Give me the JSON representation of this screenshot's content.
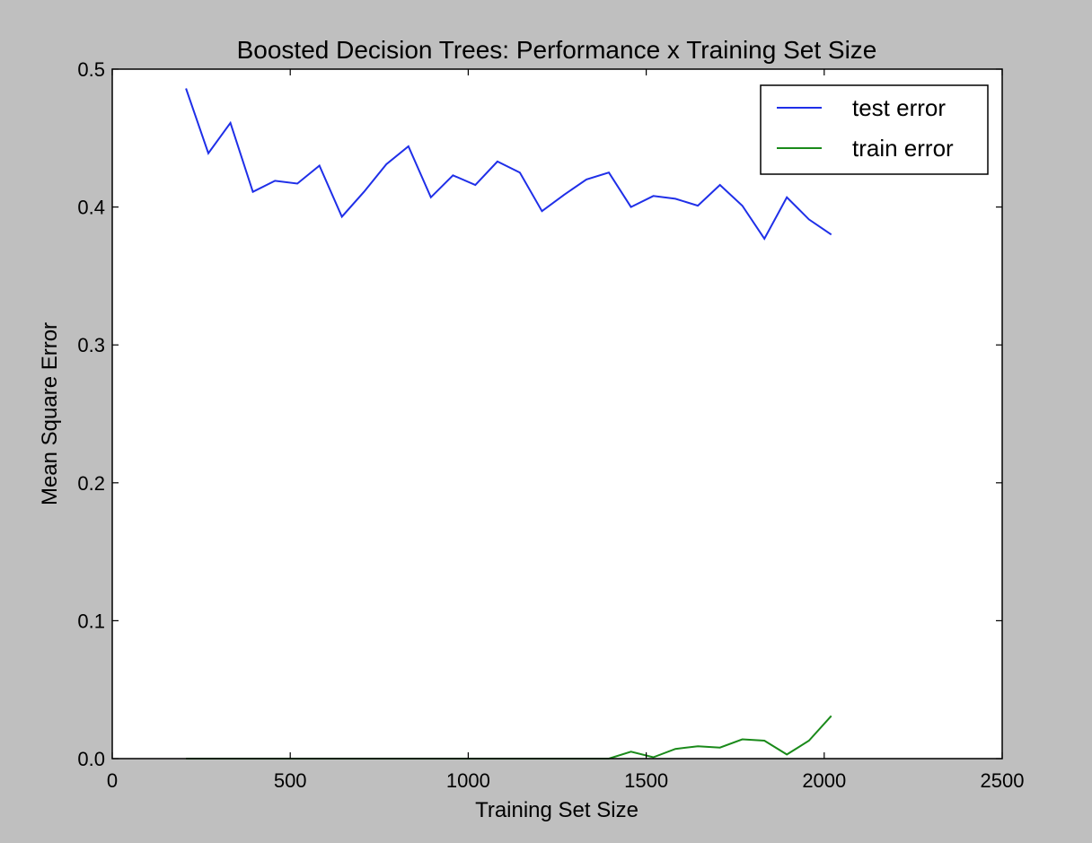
{
  "figure": {
    "background": "#bfbfbf",
    "axes_background": "#ffffff"
  },
  "chart_data": {
    "type": "line",
    "title": "Boosted Decision Trees: Performance x Training Set Size",
    "xlabel": "Training Set Size",
    "ylabel": "Mean Square Error",
    "xlim": [
      0,
      2500
    ],
    "ylim": [
      0.0,
      0.5
    ],
    "xticks": [
      0,
      500,
      1000,
      1500,
      2000,
      2500
    ],
    "xtick_labels": [
      "0",
      "500",
      "1000",
      "1500",
      "2000",
      "2500"
    ],
    "yticks": [
      0.0,
      0.1,
      0.2,
      0.3,
      0.4,
      0.5
    ],
    "ytick_labels": [
      "0.0",
      "0.1",
      "0.2",
      "0.3",
      "0.4",
      "0.5"
    ],
    "grid": false,
    "legend_position": "top-right",
    "series": [
      {
        "name": "test error",
        "color": "#1f2fe8",
        "x": [
          207,
          270,
          332,
          395,
          457,
          520,
          582,
          645,
          707,
          770,
          832,
          895,
          957,
          1020,
          1082,
          1145,
          1207,
          1270,
          1332,
          1395,
          1457,
          1520,
          1582,
          1645,
          1707,
          1770,
          1832,
          1895,
          1957,
          2020
        ],
        "y": [
          0.486,
          0.439,
          0.461,
          0.411,
          0.419,
          0.417,
          0.43,
          0.393,
          0.411,
          0.431,
          0.444,
          0.407,
          0.423,
          0.416,
          0.433,
          0.425,
          0.397,
          0.409,
          0.42,
          0.425,
          0.4,
          0.408,
          0.406,
          0.401,
          0.416,
          0.401,
          0.377,
          0.407,
          0.391,
          0.38
        ]
      },
      {
        "name": "train error",
        "color": "#1a8a1a",
        "x": [
          207,
          270,
          332,
          395,
          457,
          520,
          582,
          645,
          707,
          770,
          832,
          895,
          957,
          1020,
          1082,
          1145,
          1207,
          1270,
          1332,
          1395,
          1457,
          1520,
          1582,
          1645,
          1707,
          1770,
          1832,
          1895,
          1957,
          2020
        ],
        "y": [
          0,
          0,
          0,
          0,
          0,
          0,
          0,
          0,
          0,
          0,
          0,
          0,
          0,
          0,
          0,
          0,
          0,
          0,
          0,
          0,
          0.005,
          0.001,
          0.007,
          0.009,
          0.008,
          0.014,
          0.013,
          0.003,
          0.013,
          0.031
        ]
      }
    ]
  }
}
